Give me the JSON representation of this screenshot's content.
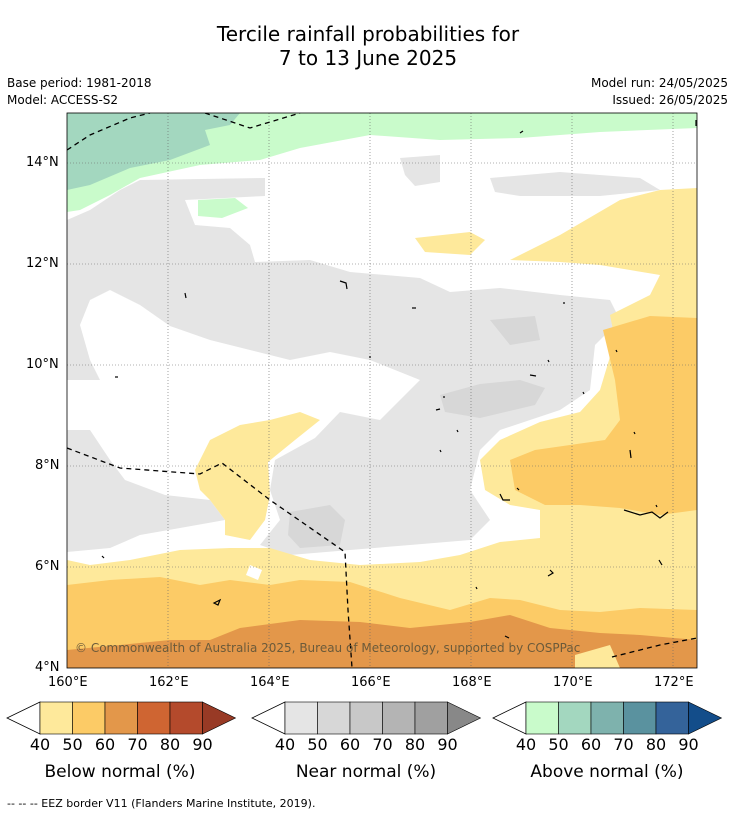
{
  "title_line1": "Tercile rainfall probabilities for",
  "title_line2": "7 to 13 June 2025",
  "base_period": "Base period: 1981-2018",
  "model": "Model: ACCESS-S2",
  "model_run": "Model run: 24/05/2025",
  "issued": "Issued: 26/05/2025",
  "copyright": "© Commonwealth of Australia 2025, Bureau of Meteorology, supported by COSPPac",
  "footer": "--  --  -- EEZ border V11 (Flanders Marine Institute, 2019).",
  "map": {
    "lat_ticks": [
      "14°N",
      "12°N",
      "10°N",
      "8°N",
      "6°N",
      "4°N"
    ],
    "lon_ticks": [
      "160°E",
      "162°E",
      "164°E",
      "166°E",
      "168°E",
      "170°E",
      "172°E"
    ]
  },
  "colorbars": [
    {
      "title": "Below normal (%)",
      "labels": [
        "40",
        "50",
        "60",
        "70",
        "80",
        "90"
      ],
      "colors": [
        "#fee99b",
        "#fccb66",
        "#e3974a",
        "#cf6532",
        "#b44a2c",
        "#983a25"
      ]
    },
    {
      "title": "Near normal (%)",
      "labels": [
        "40",
        "50",
        "60",
        "70",
        "80",
        "90"
      ],
      "colors": [
        "#e5e5e5",
        "#d7d7d7",
        "#c8c8c8",
        "#b4b4b4",
        "#a0a0a0",
        "#888888"
      ]
    },
    {
      "title": "Above normal (%)",
      "labels": [
        "40",
        "50",
        "60",
        "70",
        "80",
        "90"
      ],
      "colors": [
        "#c9fbcb",
        "#a3d7bf",
        "#7eb2ad",
        "#5a929f",
        "#34639a",
        "#134d8a"
      ]
    }
  ]
}
